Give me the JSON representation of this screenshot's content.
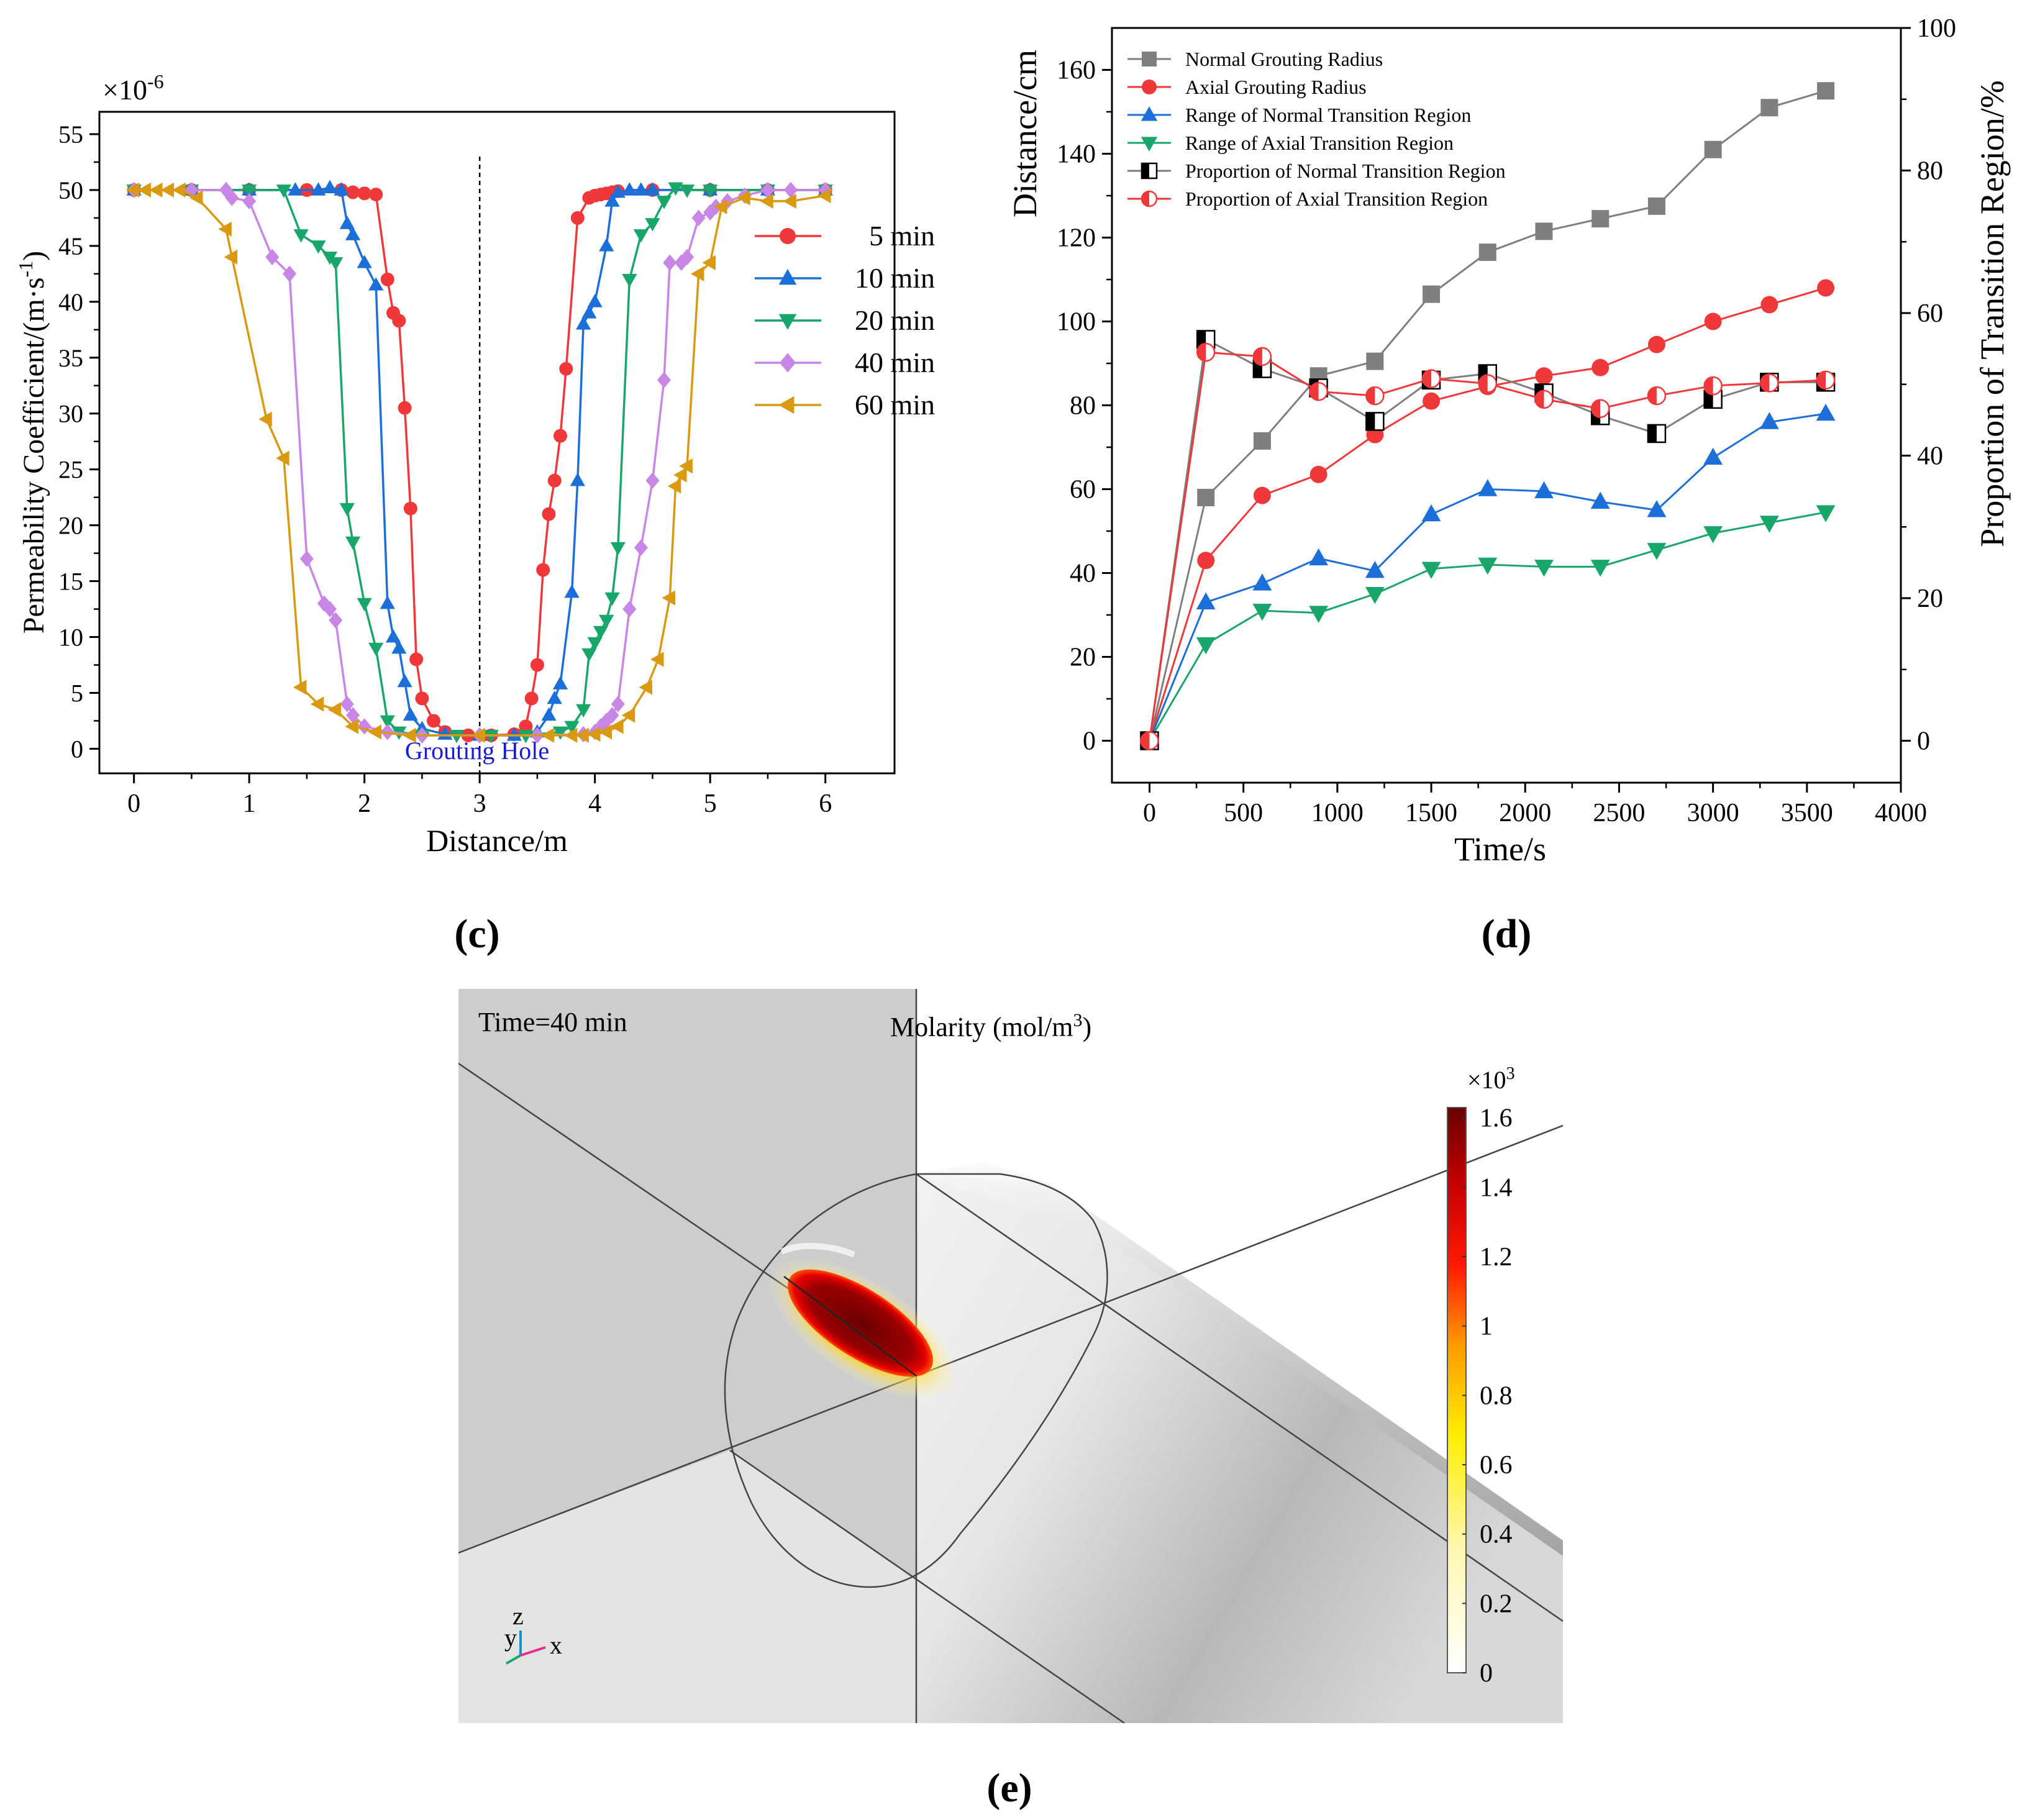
{
  "chart_data": [
    {
      "panel": "(c)",
      "type": "line",
      "xlabel": "Distance/m",
      "ylabel": "Permeability Coefficient/(m·s",
      "ylabel_sup": "-1",
      "ylabel_tail": ")",
      "y_multiplier": "×10",
      "y_multiplier_sup": "-6",
      "xlim": [
        -0.3,
        6.6
      ],
      "ylim": [
        -2.2,
        57
      ],
      "xticks": [
        0,
        1,
        2,
        3,
        4,
        5,
        6
      ],
      "yticks": [
        0,
        5,
        10,
        15,
        20,
        25,
        30,
        35,
        40,
        45,
        50,
        55
      ],
      "annotation": "Grouting Hole",
      "annotation_color": "#1a1adb",
      "divider_x": 3,
      "legend": "center-right",
      "series": [
        {
          "name": "5 min",
          "color": "#f0383a",
          "marker": "circle",
          "x": [
            0,
            0.5,
            1.0,
            1.5,
            1.8,
            1.9,
            2.0,
            2.1,
            2.2,
            2.25,
            2.3,
            2.35,
            2.4,
            2.45,
            2.5,
            2.6,
            2.7,
            2.9,
            3.1,
            3.3,
            3.4,
            3.45,
            3.5,
            3.55,
            3.6,
            3.65,
            3.7,
            3.75,
            3.85,
            3.95,
            4.0,
            4.05,
            4.1,
            4.15,
            4.2,
            4.5,
            5.0,
            5.5,
            6.0
          ],
          "y": [
            50,
            50,
            50,
            50,
            50,
            49.8,
            49.7,
            49.6,
            42,
            39,
            38.3,
            30.5,
            21.5,
            8,
            4.5,
            2.5,
            1.5,
            1.2,
            1.2,
            1.3,
            2,
            4.5,
            7.5,
            16,
            21,
            24,
            28,
            34,
            47.5,
            49.3,
            49.5,
            49.6,
            49.7,
            49.8,
            49.9,
            50,
            50,
            50,
            50
          ]
        },
        {
          "name": "10 min",
          "color": "#1c6fd8",
          "marker": "triangle-up",
          "x": [
            0,
            0.5,
            1.0,
            1.4,
            1.6,
            1.7,
            1.8,
            1.85,
            1.9,
            2.0,
            2.1,
            2.2,
            2.25,
            2.3,
            2.35,
            2.4,
            2.5,
            2.7,
            3.0,
            3.3,
            3.5,
            3.6,
            3.65,
            3.7,
            3.8,
            3.85,
            3.9,
            3.95,
            4.0,
            4.1,
            4.15,
            4.2,
            4.3,
            4.4,
            4.5,
            5.0,
            5.5,
            6.0
          ],
          "y": [
            50,
            50,
            50,
            50,
            50,
            50.2,
            50,
            47,
            46,
            43.5,
            41.5,
            13,
            10,
            9,
            6,
            3,
            1.8,
            1.3,
            1.2,
            1.2,
            1.5,
            3,
            4.5,
            5.8,
            14,
            24,
            38,
            39,
            40,
            45,
            49,
            49.8,
            50,
            50,
            50,
            50,
            50,
            50
          ]
        },
        {
          "name": "20 min",
          "color": "#18a66a",
          "marker": "triangle-down",
          "x": [
            0,
            0.5,
            1.0,
            1.3,
            1.45,
            1.6,
            1.7,
            1.75,
            1.85,
            1.9,
            2.0,
            2.1,
            2.2,
            2.3,
            2.5,
            2.8,
            3.1,
            3.4,
            3.7,
            3.8,
            3.9,
            3.95,
            4.0,
            4.05,
            4.1,
            4.15,
            4.2,
            4.3,
            4.4,
            4.5,
            4.6,
            4.7,
            4.8,
            5.0,
            5.5,
            6.0
          ],
          "y": [
            50,
            50,
            50,
            50,
            46,
            45,
            44,
            43.5,
            21.5,
            18.5,
            13,
            9,
            2.5,
            1.5,
            1.2,
            1.2,
            1.2,
            1.2,
            1.5,
            2,
            3.5,
            8.5,
            9.5,
            10.5,
            11.5,
            13.5,
            18,
            42,
            46,
            47,
            49,
            50.2,
            50,
            50,
            50,
            50
          ]
        },
        {
          "name": "40 min",
          "color": "#c886e6",
          "marker": "diamond",
          "x": [
            0,
            0.5,
            0.8,
            0.85,
            1.0,
            1.2,
            1.35,
            1.5,
            1.65,
            1.7,
            1.75,
            1.85,
            1.9,
            2.0,
            2.2,
            2.5,
            3.0,
            3.5,
            3.9,
            4.0,
            4.05,
            4.1,
            4.15,
            4.2,
            4.3,
            4.4,
            4.5,
            4.6,
            4.65,
            4.75,
            4.8,
            4.9,
            5.0,
            5.05,
            5.15,
            5.3,
            5.5,
            5.7,
            6.0
          ],
          "y": [
            50,
            50,
            50,
            49.3,
            49,
            44,
            42.5,
            17,
            13,
            12.5,
            11.5,
            4,
            3,
            2,
            1.5,
            1.2,
            1.2,
            1.2,
            1.3,
            1.5,
            2,
            2.5,
            3,
            4,
            12.5,
            18,
            24,
            33,
            43.5,
            43.5,
            44,
            47.5,
            48,
            48.5,
            49,
            49.5,
            50,
            50,
            50
          ]
        },
        {
          "name": "60 min",
          "color": "#d99a12",
          "marker": "triangle-left",
          "x": [
            0,
            0.1,
            0.2,
            0.3,
            0.4,
            0.55,
            0.8,
            0.85,
            1.15,
            1.3,
            1.45,
            1.6,
            1.75,
            1.9,
            2.1,
            2.4,
            3.0,
            3.6,
            3.8,
            3.9,
            4.0,
            4.1,
            4.2,
            4.3,
            4.45,
            4.55,
            4.65,
            4.7,
            4.75,
            4.8,
            4.9,
            5.0,
            5.1,
            5.3,
            5.5,
            5.7,
            6.0
          ],
          "y": [
            50,
            50,
            50,
            50,
            50,
            49.3,
            46.5,
            44,
            29.5,
            26,
            5.5,
            4,
            3.5,
            2,
            1.5,
            1.2,
            1.2,
            1.2,
            1.2,
            1.2,
            1.3,
            1.5,
            2,
            3,
            5.5,
            8,
            13.5,
            23.5,
            24.5,
            25.3,
            42.5,
            43.5,
            48.5,
            49.3,
            49,
            49,
            49.5
          ]
        }
      ]
    },
    {
      "panel": "(d)",
      "type": "line",
      "xlabel": "Time/s",
      "ylabel": "Distance/cm",
      "y2label": "Proportion of Transition Region/%",
      "xlim": [
        -200,
        4000
      ],
      "ylim": [
        -10,
        170
      ],
      "y2lim": [
        -5.88,
        100
      ],
      "xticks": [
        0,
        500,
        1000,
        1500,
        2000,
        2500,
        3000,
        3500,
        4000
      ],
      "yticks": [
        0,
        20,
        40,
        60,
        80,
        100,
        120,
        140,
        160
      ],
      "y2ticks": [
        0,
        20,
        40,
        60,
        80,
        100
      ],
      "legend": "top-left",
      "x": [
        0,
        300,
        600,
        900,
        1200,
        1500,
        1800,
        2100,
        2400,
        2700,
        3000,
        3300,
        3600
      ],
      "series": [
        {
          "name": "Normal Grouting Radius",
          "color": "#7f7f7f",
          "marker": "square",
          "axis": "left",
          "values": [
            0,
            58,
            71.5,
            87,
            90.5,
            106.5,
            116.5,
            121.5,
            124.5,
            127.5,
            141,
            151,
            155
          ]
        },
        {
          "name": "Axial Grouting Radius",
          "color": "#f0383a",
          "marker": "circle",
          "axis": "left",
          "values": [
            0,
            43,
            58.5,
            63.5,
            73,
            81,
            84.5,
            87,
            89,
            94.5,
            100,
            104,
            108
          ]
        },
        {
          "name": "Range of Normal Transition Region",
          "color": "#1c6fd8",
          "marker": "triangle-up",
          "axis": "left",
          "values": [
            0,
            33,
            37.5,
            43.5,
            40.5,
            54,
            60,
            59.5,
            57,
            55,
            67.5,
            76,
            78
          ]
        },
        {
          "name": "Range of Axial Transition Region",
          "color": "#18a66a",
          "marker": "triangle-down",
          "axis": "left",
          "values": [
            0,
            23,
            31,
            30.5,
            35,
            41,
            42,
            41.5,
            41.5,
            45.5,
            49.5,
            52,
            54.5
          ]
        },
        {
          "name": "Proportion of Normal Transition Region",
          "color": "#000000",
          "marker": "half-square",
          "axis": "right",
          "line_color": "#7f7f7f",
          "values": [
            0,
            56.3,
            52.2,
            49.5,
            44.8,
            50.6,
            51.5,
            48.8,
            45.6,
            43.1,
            47.9,
            50.3,
            50.3
          ]
        },
        {
          "name": "Proportion of Axial Transition Region",
          "color": "#f0383a",
          "marker": "half-circle",
          "axis": "right",
          "line_color": "#f0383a",
          "values": [
            0,
            54.5,
            53.9,
            49.0,
            48.4,
            50.8,
            50.1,
            47.9,
            46.6,
            48.4,
            49.8,
            50.2,
            50.6
          ]
        }
      ]
    }
  ],
  "panel_c_label": "(c)",
  "panel_d_label": "(d)",
  "panel_e": {
    "label": "(e)",
    "time_label": "Time=40 min",
    "colorbar_title": "Molarity (mol/m",
    "colorbar_title_sup": "3",
    "colorbar_title_tail": ")",
    "colorbar_multiplier": "×10",
    "colorbar_multiplier_sup": "3",
    "colorbar_ticks": [
      "1.6",
      "1.4",
      "1.2",
      "1",
      "0.8",
      "0.6",
      "0.4",
      "0.2",
      "0"
    ],
    "colorbar_values": [
      1.6,
      1.4,
      1.2,
      1.0,
      0.8,
      0.6,
      0.4,
      0.2,
      0
    ],
    "colorbar_max": 1.63,
    "axis_labels": [
      "y",
      "z",
      "x"
    ]
  }
}
